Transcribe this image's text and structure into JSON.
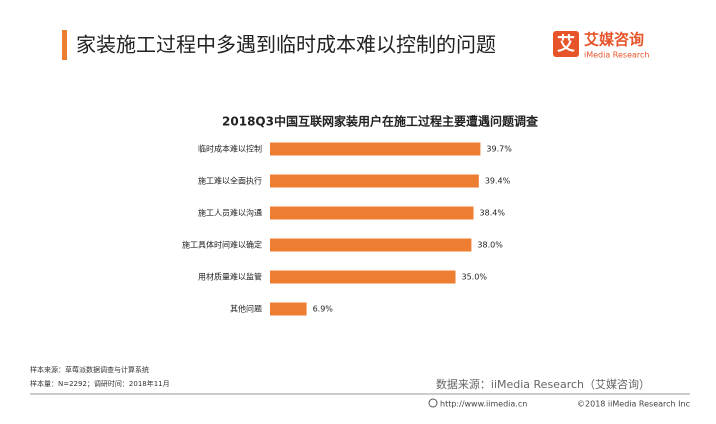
{
  "header": {
    "title": "家装施工过程中多遇到临时成本难以控制的问题",
    "logo_icon": "艾",
    "logo_name": "艾媒咨询",
    "logo_sub": "iMedia Research"
  },
  "chart_data": {
    "type": "bar",
    "orientation": "horizontal",
    "title": "2018Q3中国互联网家装用户在施工过程主要遭遇问题调查",
    "categories": [
      "临时成本难以控制",
      "施工难以全面执行",
      "施工人员难以沟通",
      "施工具体时间难以确定",
      "用材质量难以监管",
      "其他问题"
    ],
    "values": [
      39.7,
      39.4,
      38.4,
      38.0,
      35.0,
      6.9
    ],
    "value_labels": [
      "39.7%",
      "39.4%",
      "38.4%",
      "38.0%",
      "35.0%",
      "6.9%"
    ],
    "color": "#ed7d31"
  },
  "footer": {
    "sample_source": "样本来源：草莓派数据调查与计算系统",
    "sample_size": "样本量：N=2292；调研时间：2018年11月",
    "data_source": "数据来源：iiMedia Research（艾媒咨询）",
    "url": "http://www.iimedia.cn",
    "copyright": "©2018  iiMedia Research  Inc"
  }
}
